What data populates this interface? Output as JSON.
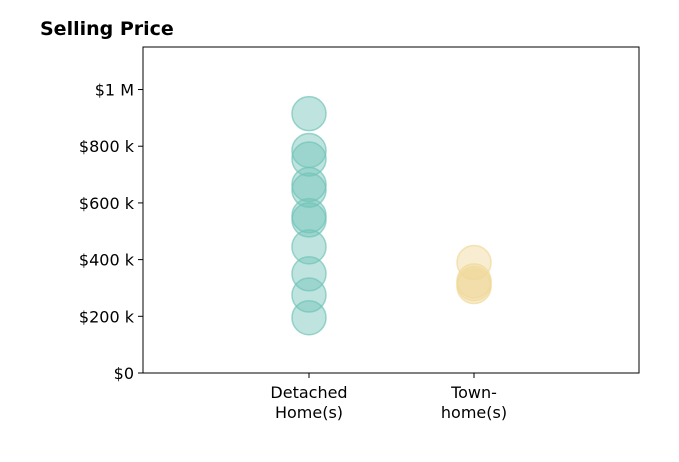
{
  "chart_data": {
    "type": "scatter",
    "title": "Selling Price",
    "xlabel": "",
    "ylabel": "",
    "ylim": [
      0,
      1150000
    ],
    "y_ticks": [
      {
        "value": 0,
        "label": "$0"
      },
      {
        "value": 200000,
        "label": "$200 k"
      },
      {
        "value": 400000,
        "label": "$400 k"
      },
      {
        "value": 600000,
        "label": "$600 k"
      },
      {
        "value": 800000,
        "label": "$800 k"
      },
      {
        "value": 1000000,
        "label": "$1 M"
      }
    ],
    "categories": [
      {
        "lines": [
          "Detached",
          "Home(s)"
        ]
      },
      {
        "lines": [
          "Town-",
          "home(s)"
        ]
      }
    ],
    "grid": false,
    "series": [
      {
        "category_index": 0,
        "color": "#72c3b8",
        "values": [
          915000,
          785000,
          755000,
          665000,
          645000,
          555000,
          540000,
          445000,
          350000,
          275000,
          195000
        ]
      },
      {
        "category_index": 1,
        "color": "#f0d898",
        "values": [
          390000,
          325000,
          315000,
          305000
        ]
      }
    ]
  }
}
